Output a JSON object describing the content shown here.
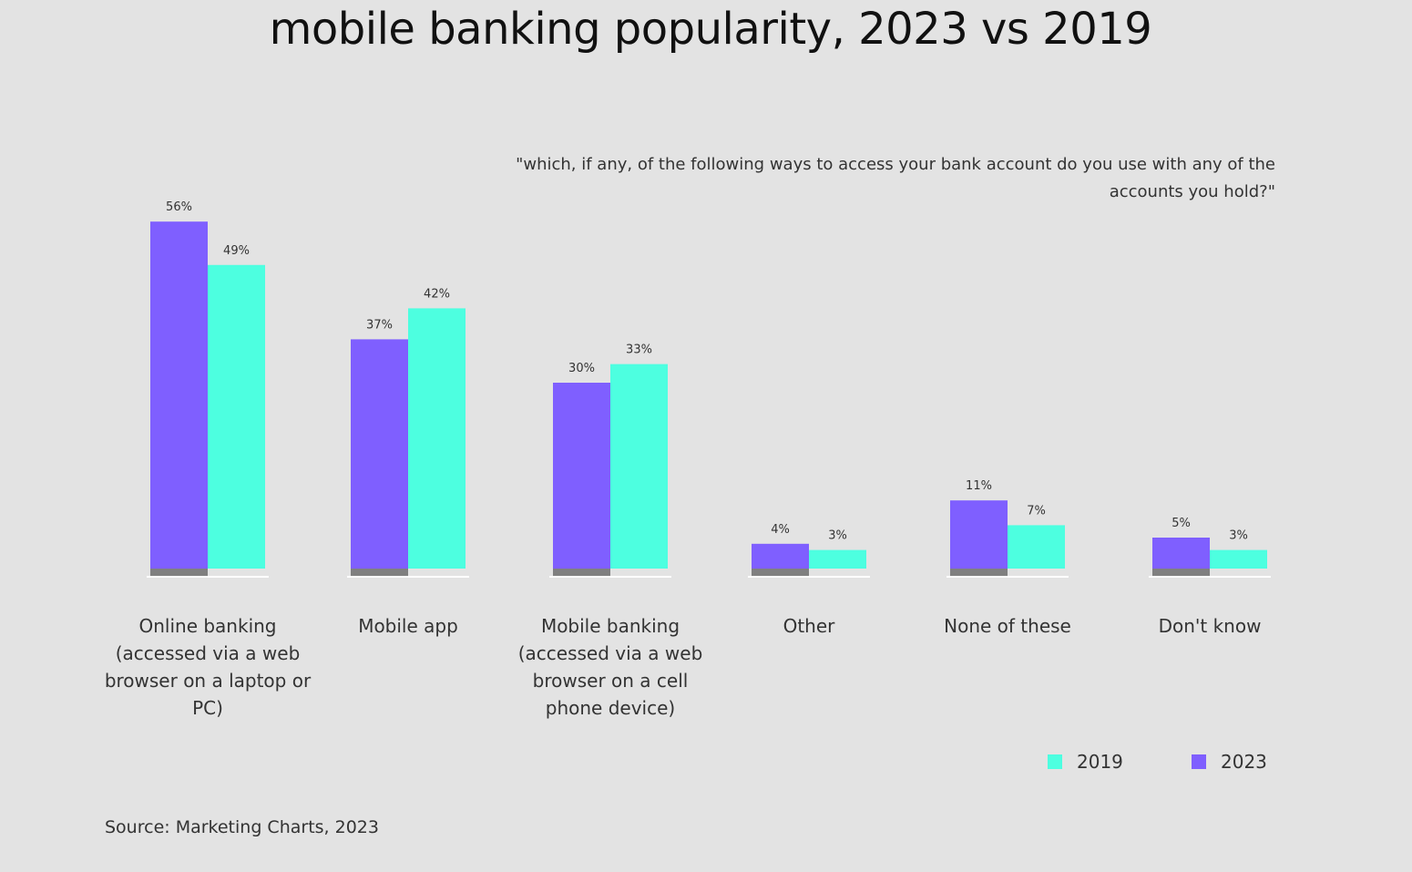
{
  "chart_data": {
    "type": "bar",
    "title": "mobile banking popularity, 2023 vs 2019",
    "subtitle": "\"which, if any, of the following ways to access your bank account do you use with any of the accounts you hold?\"",
    "categories": [
      "Online banking (accessed via a web browser on a laptop or PC)",
      "Mobile app",
      "Mobile banking (accessed via a web browser on a cell phone device)",
      "Other",
      "None of these",
      "Don't know"
    ],
    "series": [
      {
        "name": "2023",
        "color": "#7f5fff",
        "values": [
          56,
          37,
          30,
          4,
          11,
          5
        ]
      },
      {
        "name": "2019",
        "color": "#4dffe0",
        "values": [
          49,
          42,
          33,
          3,
          7,
          3
        ]
      }
    ],
    "data_labels": [
      [
        "56%",
        "37%",
        "30%",
        "4%",
        "11%",
        "5%"
      ],
      [
        "49%",
        "42%",
        "33%",
        "3%",
        "7%",
        "3%"
      ]
    ],
    "ylim": [
      0,
      60
    ],
    "grid": false,
    "legend_placement": "bottom-right",
    "legend": [
      "2019",
      "2023"
    ],
    "source": "Source: Marketing Charts, 2023"
  }
}
